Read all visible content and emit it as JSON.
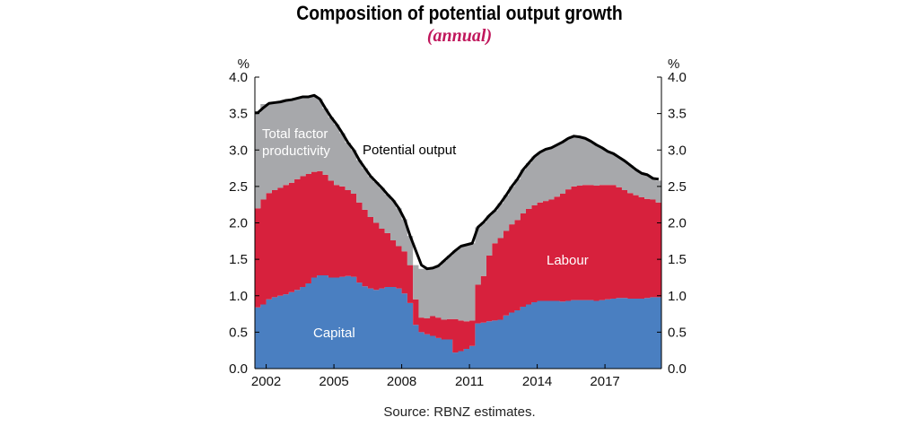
{
  "title": "Composition of potential output growth",
  "subtitle": "(annual)",
  "source": "Source: RBNZ estimates.",
  "colors": {
    "capital": "#4a7fc1",
    "labour": "#d7213d",
    "tfp": "#a7a8ab",
    "potential": "#000000",
    "subtitle": "#c0175c"
  },
  "chart_data": {
    "type": "area",
    "stacked": true,
    "x_start": 2001.5,
    "x_step": 0.25,
    "xlim": [
      2001.5,
      2019.5
    ],
    "ylim": [
      0,
      4
    ],
    "y_ticks": [
      "0.0",
      "0.5",
      "1.0",
      "1.5",
      "2.0",
      "2.5",
      "3.0",
      "3.5",
      "4.0"
    ],
    "x_ticks": [
      "2002",
      "2005",
      "2008",
      "2011",
      "2014",
      "2017"
    ],
    "x_tick_values": [
      2002,
      2005,
      2008,
      2011,
      2014,
      2017
    ],
    "y_unit_left": "%",
    "y_unit_right": "%",
    "grid": false,
    "series": [
      {
        "name": "Capital",
        "label": "Capital",
        "values": [
          0.84,
          0.88,
          0.95,
          0.98,
          1.0,
          1.02,
          1.05,
          1.08,
          1.12,
          1.17,
          1.25,
          1.28,
          1.28,
          1.25,
          1.25,
          1.26,
          1.27,
          1.26,
          1.18,
          1.13,
          1.1,
          1.08,
          1.1,
          1.12,
          1.12,
          1.1,
          1.03,
          0.9,
          0.6,
          0.5,
          0.47,
          0.45,
          0.42,
          0.4,
          0.4,
          0.22,
          0.24,
          0.27,
          0.31,
          0.62,
          0.63,
          0.65,
          0.66,
          0.67,
          0.73,
          0.77,
          0.8,
          0.85,
          0.88,
          0.91,
          0.93,
          0.93,
          0.93,
          0.93,
          0.92,
          0.93,
          0.94,
          0.94,
          0.94,
          0.94,
          0.93,
          0.94,
          0.95,
          0.96,
          0.97,
          0.97,
          0.96,
          0.96,
          0.96,
          0.97,
          0.98,
          0.98
        ]
      },
      {
        "name": "Labour",
        "label": "Labour",
        "values": [
          1.36,
          1.44,
          1.46,
          1.47,
          1.48,
          1.5,
          1.5,
          1.52,
          1.52,
          1.5,
          1.45,
          1.43,
          1.38,
          1.33,
          1.27,
          1.24,
          1.18,
          1.14,
          1.1,
          1.05,
          0.98,
          0.92,
          0.82,
          0.74,
          0.64,
          0.58,
          0.58,
          0.52,
          0.35,
          0.2,
          0.22,
          0.27,
          0.28,
          0.27,
          0.28,
          0.46,
          0.42,
          0.38,
          0.35,
          0.53,
          0.64,
          0.9,
          1.06,
          1.12,
          1.16,
          1.21,
          1.24,
          1.28,
          1.31,
          1.33,
          1.35,
          1.37,
          1.39,
          1.43,
          1.48,
          1.53,
          1.56,
          1.57,
          1.58,
          1.58,
          1.58,
          1.58,
          1.57,
          1.56,
          1.52,
          1.48,
          1.45,
          1.42,
          1.39,
          1.36,
          1.34,
          1.3
        ]
      },
      {
        "name": "Total factor productivity",
        "label": "Total factor\nproductivity",
        "values": [
          1.31,
          1.31,
          1.23,
          1.2,
          1.18,
          1.16,
          1.14,
          1.11,
          1.09,
          1.06,
          1.05,
          0.99,
          0.91,
          0.87,
          0.83,
          0.73,
          0.65,
          0.6,
          0.58,
          0.57,
          0.56,
          0.56,
          0.56,
          0.53,
          0.55,
          0.52,
          0.44,
          0.4,
          0.47,
          0.67,
          0.68,
          0.66,
          0.71,
          0.81,
          0.87,
          0.94,
          1.02,
          1.05,
          1.06,
          0.79,
          0.74,
          0.55,
          0.45,
          0.48,
          0.49,
          0.52,
          0.56,
          0.6,
          0.63,
          0.67,
          0.69,
          0.71,
          0.71,
          0.71,
          0.71,
          0.7,
          0.69,
          0.67,
          0.64,
          0.6,
          0.56,
          0.51,
          0.46,
          0.43,
          0.41,
          0.4,
          0.38,
          0.35,
          0.33,
          0.33,
          0.29,
          0.3
        ]
      },
      {
        "name": "Potential output",
        "label": "Potential output",
        "type": "line",
        "values": [
          3.51,
          3.58,
          3.64,
          3.65,
          3.66,
          3.68,
          3.69,
          3.71,
          3.73,
          3.73,
          3.75,
          3.7,
          3.57,
          3.45,
          3.35,
          3.23,
          3.1,
          3.0,
          2.86,
          2.75,
          2.64,
          2.56,
          2.48,
          2.39,
          2.31,
          2.2,
          2.05,
          1.82,
          1.62,
          1.42,
          1.37,
          1.38,
          1.41,
          1.48,
          1.55,
          1.62,
          1.68,
          1.7,
          1.72,
          1.94,
          2.01,
          2.1,
          2.17,
          2.27,
          2.38,
          2.5,
          2.6,
          2.73,
          2.82,
          2.91,
          2.97,
          3.01,
          3.03,
          3.07,
          3.11,
          3.16,
          3.19,
          3.18,
          3.16,
          3.12,
          3.07,
          3.03,
          2.98,
          2.95,
          2.9,
          2.85,
          2.79,
          2.73,
          2.68,
          2.66,
          2.61,
          2.6
        ]
      }
    ]
  }
}
